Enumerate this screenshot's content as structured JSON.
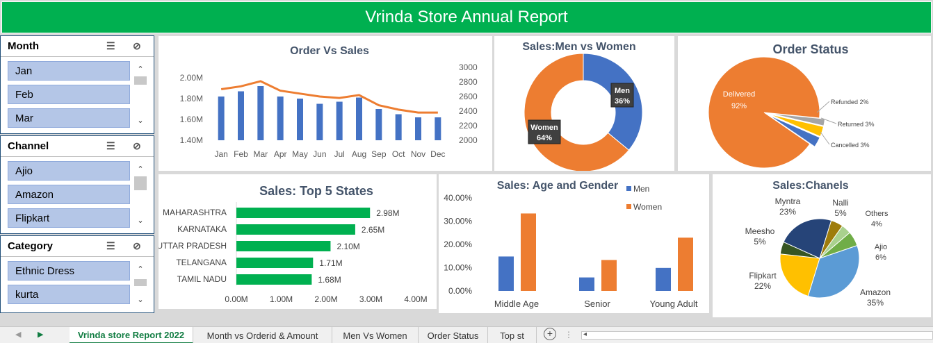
{
  "title": "Vrinda Store Annual Report",
  "slicers": [
    {
      "header": "Month",
      "items": [
        "Jan",
        "Feb",
        "Mar"
      ]
    },
    {
      "header": "Channel",
      "items": [
        "Ajio",
        "Amazon",
        "Flipkart"
      ]
    },
    {
      "header": "Category",
      "items": [
        "Ethnic Dress",
        "kurta"
      ]
    }
  ],
  "tabs": [
    "Vrinda store Report 2022",
    "Month vs Orderid & Amount",
    "Men Vs Women",
    "Order Status",
    "Top st"
  ],
  "colors": {
    "green": "#00b050",
    "blue": "#4472c4",
    "orange": "#ed7d31",
    "gray": "#a5a5a5",
    "yellow": "#ffc000",
    "lightblue": "#5b9bd5",
    "darkgreen": "#375623",
    "darkblue": "#264478",
    "gold": "#9e7c0c",
    "lightgreen": "#70ad47",
    "palegreen": "#a9d18e"
  },
  "chart_data": [
    {
      "type": "bar",
      "title": "Order Vs Sales",
      "categories": [
        "Jan",
        "Feb",
        "Mar",
        "Apr",
        "May",
        "Jun",
        "Jul",
        "Aug",
        "Sep",
        "Oct",
        "Nov",
        "Dec"
      ],
      "series": [
        {
          "values": [
            1.82,
            1.87,
            1.92,
            1.82,
            1.8,
            1.75,
            1.77,
            1.81,
            1.7,
            1.65,
            1.62,
            1.62
          ]
        },
        {
          "values": [
            2700,
            2740,
            2810,
            2680,
            2640,
            2600,
            2580,
            2620,
            2480,
            2420,
            2380,
            2380
          ]
        }
      ],
      "yticks": [
        "2.00M",
        "1.80M",
        "1.60M",
        "1.40M"
      ],
      "y2ticks": [
        "3000",
        "2800",
        "2600",
        "2400",
        "2200",
        "2000"
      ],
      "ylim": [
        1.4,
        2.1
      ],
      "y2lim": [
        2000,
        3000
      ]
    },
    {
      "type": "pie",
      "title": "Sales:Men vs Women",
      "labels": [
        "Men",
        "Women"
      ],
      "values": [
        36,
        64
      ],
      "value_labels": [
        "36%",
        "64%"
      ]
    },
    {
      "type": "pie",
      "title": "Order Status",
      "labels": [
        "Delivered",
        "Refunded 2%",
        "Returned 3%",
        "Cancelled 3%"
      ],
      "values": [
        92,
        2,
        3,
        3
      ],
      "value_labels": [
        "92%",
        "",
        "",
        ""
      ]
    },
    {
      "type": "bar",
      "title": "Sales: Top 5 States",
      "categories": [
        "MAHARASHTRA",
        "KARNATAKA",
        "UTTAR PRADESH",
        "TELANGANA",
        "TAMIL NADU"
      ],
      "values": [
        2.98,
        2.65,
        2.1,
        1.71,
        1.68
      ],
      "value_labels": [
        "2.98M",
        "2.65M",
        "2.10M",
        "1.71M",
        "1.68M"
      ],
      "xticks": [
        "0.00M",
        "1.00M",
        "2.00M",
        "3.00M",
        "4.00M"
      ],
      "xlim": [
        0,
        4
      ]
    },
    {
      "type": "bar",
      "title": "Sales: Age and Gender",
      "categories": [
        "Middle Age",
        "Senior",
        "Young Adult"
      ],
      "series": [
        {
          "name": "Men",
          "values": [
            14.8,
            5.8,
            9.9
          ]
        },
        {
          "name": "Women",
          "values": [
            33.3,
            13.3,
            22.9
          ]
        }
      ],
      "yticks": [
        "40.00%",
        "30.00%",
        "20.00%",
        "10.00%",
        "0.00%"
      ],
      "ylim": [
        0,
        40
      ]
    },
    {
      "type": "pie",
      "title": "Sales:Chanels",
      "labels": [
        "Amazon",
        "Flipkart",
        "Meesho",
        "Myntra",
        "Nalli",
        "Others",
        "Ajio"
      ],
      "values": [
        35,
        22,
        5,
        23,
        5,
        4,
        6
      ],
      "value_labels": [
        "35%",
        "22%",
        "5%",
        "23%",
        "5%",
        "4%",
        "6%"
      ]
    }
  ]
}
